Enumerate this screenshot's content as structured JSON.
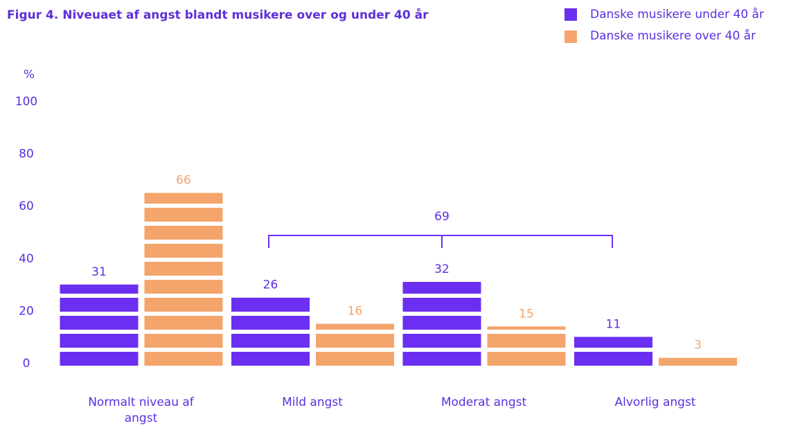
{
  "chart_data": {
    "type": "bar",
    "title": "Figur 4. Niveuaet af angst blandt musikere over og under 40 år",
    "y_label": "%",
    "categories": [
      "Normalt niveau af angst",
      "Mild angst",
      "Moderat angst",
      "Alvorlig angst"
    ],
    "series": [
      {
        "name": "Danske musikere under 40 år",
        "color": "#6a2ff0",
        "values": [
          31,
          26,
          32,
          11
        ]
      },
      {
        "name": "Danske musikere over 40 år",
        "color": "#f3a56b",
        "values": [
          66,
          16,
          15,
          3
        ]
      }
    ],
    "annotation": "69",
    "ylim": [
      0,
      100
    ],
    "yticks": [
      0,
      20,
      40,
      60,
      80,
      100
    ],
    "grid": false
  }
}
